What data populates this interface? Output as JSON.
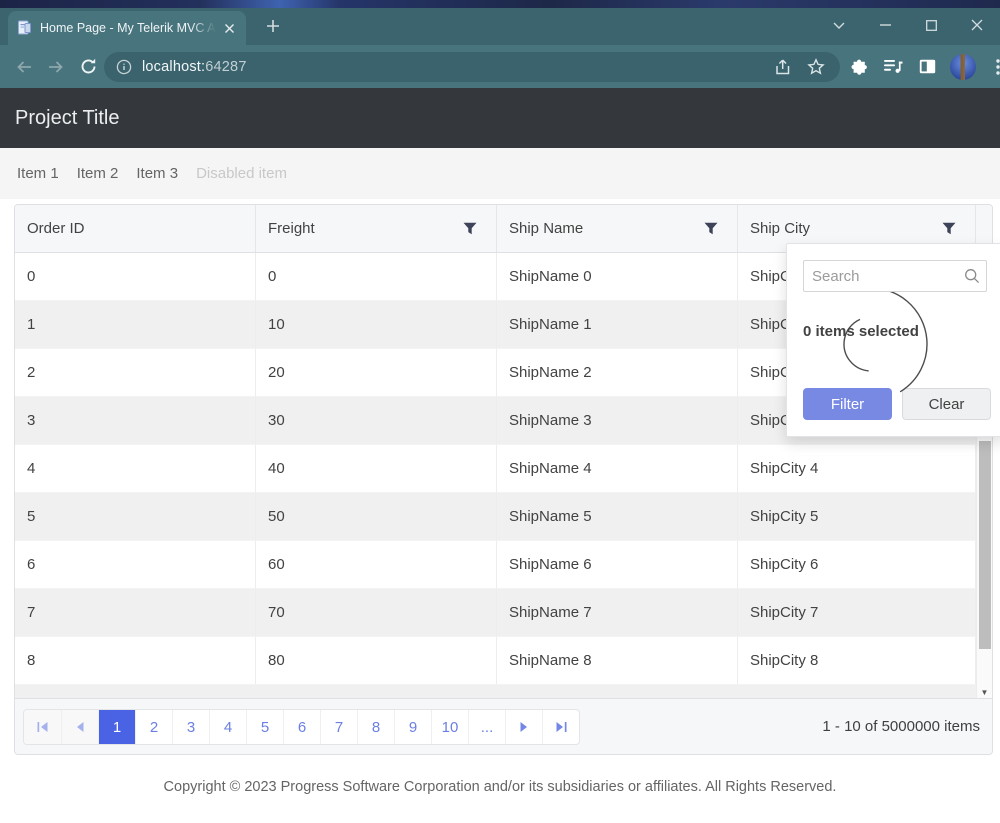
{
  "browser": {
    "tab": {
      "title": "Home Page - My Telerik MVC Ap"
    },
    "address": {
      "url_host": "localhost:",
      "url_port": "64287"
    }
  },
  "app": {
    "title": "Project Title",
    "menu_items": [
      {
        "label": "Item 1",
        "disabled": false
      },
      {
        "label": "Item 2",
        "disabled": false
      },
      {
        "label": "Item 3",
        "disabled": false
      },
      {
        "label": "Disabled item",
        "disabled": true
      }
    ]
  },
  "grid": {
    "columns": [
      {
        "label": "Order ID",
        "filterable": false
      },
      {
        "label": "Freight",
        "filterable": true
      },
      {
        "label": "Ship Name",
        "filterable": true
      },
      {
        "label": "Ship City",
        "filterable": true
      }
    ],
    "rows": [
      [
        "0",
        "0",
        "ShipName 0",
        "ShipCity 0"
      ],
      [
        "1",
        "10",
        "ShipName 1",
        "ShipCity 1"
      ],
      [
        "2",
        "20",
        "ShipName 2",
        "ShipCity 2"
      ],
      [
        "3",
        "30",
        "ShipName 3",
        "ShipCity 3"
      ],
      [
        "4",
        "40",
        "ShipName 4",
        "ShipCity 4"
      ],
      [
        "5",
        "50",
        "ShipName 5",
        "ShipCity 5"
      ],
      [
        "6",
        "60",
        "ShipName 6",
        "ShipCity 6"
      ],
      [
        "7",
        "70",
        "ShipName 7",
        "ShipCity 7"
      ],
      [
        "8",
        "80",
        "ShipName 8",
        "ShipCity 8"
      ]
    ]
  },
  "filter_popup": {
    "search_placeholder": "Search",
    "status_text": "0 items selected",
    "filter_button": "Filter",
    "clear_button": "Clear"
  },
  "pager": {
    "pages": [
      "1",
      "2",
      "3",
      "4",
      "5",
      "6",
      "7",
      "8",
      "9",
      "10",
      "..."
    ],
    "current_page": "1",
    "info": "1 - 10 of 5000000 items"
  },
  "footer": {
    "copyright": "Copyright © 2023 Progress Software Corporation and/or its subsidiaries or affiliates. All Rights Reserved."
  },
  "icons": {
    "search": "magnifier",
    "filter": "funnel",
    "pager_first": "|◀",
    "pager_prev": "◀",
    "pager_next": "▶",
    "pager_last": "▶|",
    "scroll_down": "▼"
  },
  "colors": {
    "accent_selected_page": "#4a63e4",
    "filter_button_bg": "#7889e4",
    "browser_frame": "#48747e",
    "app_header_bg": "#34373c",
    "alt_row_bg": "#f0f0f0"
  }
}
